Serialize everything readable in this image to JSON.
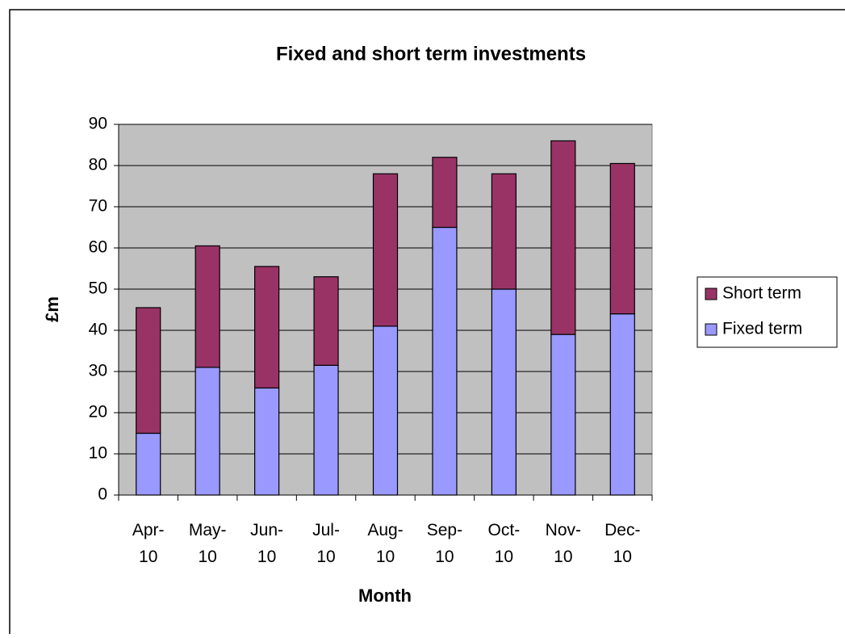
{
  "chart_data": {
    "type": "stacked_bar",
    "title": "Fixed and short term investments",
    "x_label": "Month",
    "y_label": "£m",
    "categories": [
      "Apr-10",
      "May-10",
      "Jun-10",
      "Jul-10",
      "Aug-10",
      "Sep-10",
      "Oct-10",
      "Nov-10",
      "Dec-10"
    ],
    "series": [
      {
        "name": "Fixed term",
        "color": "#9999ff",
        "values": [
          15,
          31,
          26,
          31.5,
          41,
          65,
          50,
          39,
          44
        ]
      },
      {
        "name": "Short term",
        "color": "#993366",
        "values": [
          30.5,
          29.5,
          29.5,
          21.5,
          37,
          17,
          28,
          47,
          36.5
        ]
      }
    ],
    "ylim": [
      0,
      90
    ],
    "yticks": [
      0,
      10,
      20,
      30,
      40,
      50,
      60,
      70,
      80,
      90
    ],
    "grid": true,
    "legend": "right"
  }
}
